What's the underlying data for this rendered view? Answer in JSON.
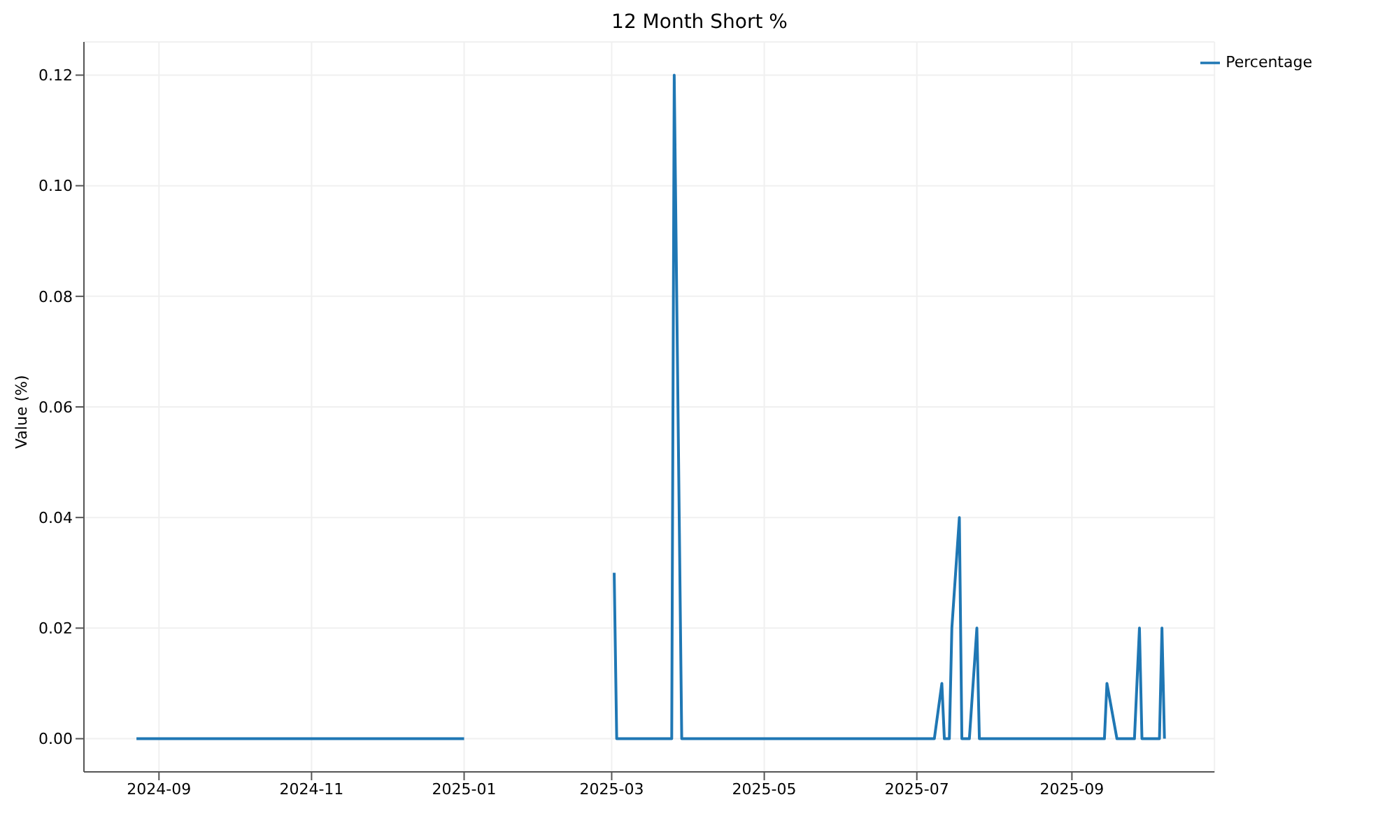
{
  "chart_data": {
    "type": "line",
    "title": "12 Month Short %",
    "ylabel": "Value (%)",
    "x": [
      "2024-08-23",
      "2025-01-01",
      "2025-02-01",
      "2025-03-02",
      "2025-03-03",
      "2025-03-25",
      "2025-03-26",
      "2025-03-29",
      "2025-07-08",
      "2025-07-11",
      "2025-07-12",
      "2025-07-14",
      "2025-07-15",
      "2025-07-18",
      "2025-07-19",
      "2025-07-22",
      "2025-07-25",
      "2025-07-26",
      "2025-09-14",
      "2025-09-15",
      "2025-09-19",
      "2025-09-26",
      "2025-09-28",
      "2025-09-29",
      "2025-10-06",
      "2025-10-07",
      "2025-10-08"
    ],
    "series": [
      {
        "name": "Percentage",
        "color": "#1f77b4",
        "values": [
          0,
          0,
          null,
          0.03,
          0,
          0,
          0.12,
          0,
          0,
          0.01,
          0,
          0,
          0.02,
          0.04,
          0,
          0,
          0.02,
          0,
          0,
          0.01,
          0,
          0,
          0.02,
          0,
          0,
          0.02,
          0
        ]
      }
    ],
    "xlim": [
      "2024-08-02",
      "2025-10-28"
    ],
    "xticks": [
      "2024-09",
      "2024-11",
      "2025-01",
      "2025-03",
      "2025-05",
      "2025-07",
      "2025-09"
    ],
    "ylim": [
      -0.006,
      0.126
    ],
    "yticks": [
      {
        "value": 0,
        "label": "0.00"
      },
      {
        "value": 0.02,
        "label": "0.02"
      },
      {
        "value": 0.04,
        "label": "0.04"
      },
      {
        "value": 0.06,
        "label": "0.06"
      },
      {
        "value": 0.08,
        "label": "0.08"
      },
      {
        "value": 0.1,
        "label": "0.10"
      },
      {
        "value": 0.12,
        "label": "0.12"
      }
    ],
    "grid": true,
    "legend": "top right",
    "marker": "none",
    "line_style": "solid"
  }
}
